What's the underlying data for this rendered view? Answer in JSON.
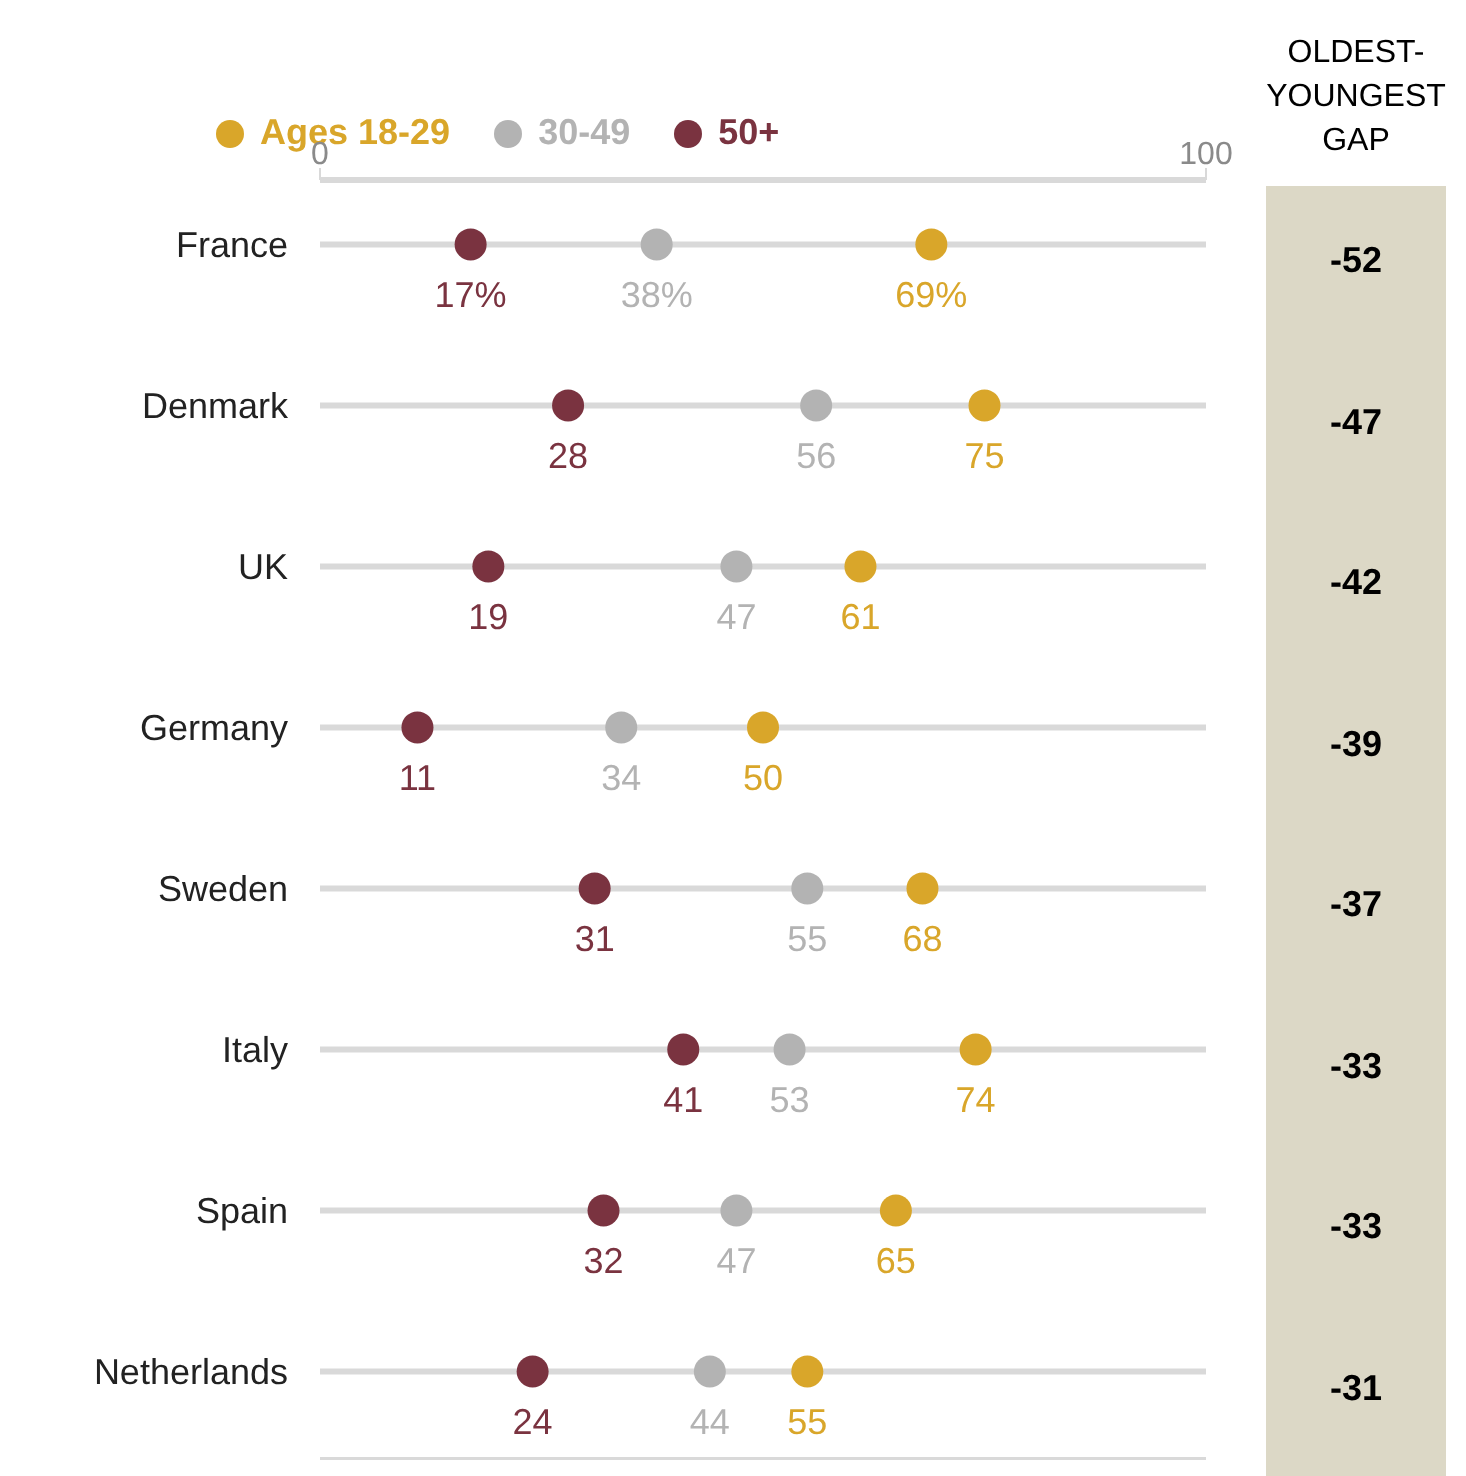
{
  "chart_data": {
    "type": "scatter",
    "orientation": "horizontal",
    "categories": [
      "France",
      "Denmark",
      "UK",
      "Germany",
      "Sweden",
      "Italy",
      "Spain",
      "Netherlands"
    ],
    "series": [
      {
        "name": "Ages 18-29",
        "color": "#d9a62a",
        "values": [
          69,
          75,
          61,
          50,
          68,
          74,
          65,
          55
        ],
        "value_labels": [
          "69%",
          "75",
          "61",
          "50",
          "68",
          "74",
          "65",
          "55"
        ]
      },
      {
        "name": "30-49",
        "color": "#b3b3b3",
        "values": [
          38,
          56,
          47,
          34,
          55,
          53,
          47,
          44
        ],
        "value_labels": [
          "38%",
          "56",
          "47",
          "34",
          "55",
          "53",
          "47",
          "44"
        ]
      },
      {
        "name": "50+",
        "color": "#7a3340",
        "values": [
          17,
          28,
          19,
          11,
          31,
          41,
          32,
          24
        ],
        "value_labels": [
          "17%",
          "28",
          "19",
          "11",
          "31",
          "41",
          "32",
          "24"
        ]
      }
    ],
    "xlim": [
      0,
      100
    ],
    "xticks": [
      0,
      100
    ],
    "grid": "y",
    "legend": "top left",
    "marker": "circle",
    "annotations": [
      "OLDEST-YOUNGEST GAP",
      "-52",
      "-47",
      "-42",
      "-39",
      "-37",
      "-33",
      "-33",
      "-31"
    ]
  }
}
